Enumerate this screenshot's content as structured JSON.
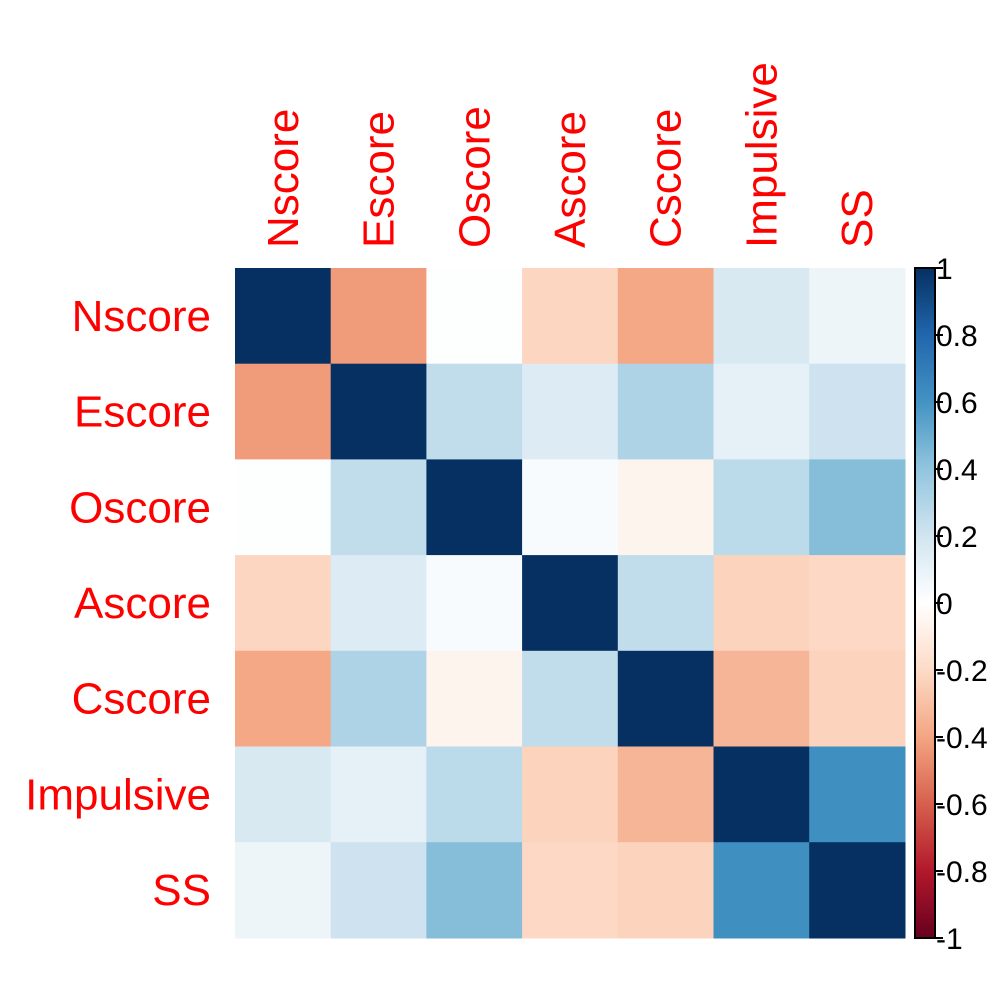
{
  "chart_data": {
    "type": "heatmap",
    "title": "",
    "variables": [
      "Nscore",
      "Escore",
      "Oscore",
      "Ascore",
      "Cscore",
      "Impulsive",
      "SS"
    ],
    "matrix": [
      [
        1.0,
        -0.43,
        0.01,
        -0.22,
        -0.39,
        0.17,
        0.08
      ],
      [
        -0.43,
        1.0,
        0.25,
        0.15,
        0.31,
        0.11,
        0.21
      ],
      [
        0.01,
        0.25,
        1.0,
        0.03,
        -0.06,
        0.27,
        0.43
      ],
      [
        -0.22,
        0.15,
        0.03,
        1.0,
        0.25,
        -0.23,
        -0.21
      ],
      [
        -0.39,
        0.31,
        -0.06,
        0.25,
        1.0,
        -0.34,
        -0.23
      ],
      [
        0.17,
        0.11,
        0.27,
        -0.23,
        -0.34,
        1.0,
        0.62
      ],
      [
        0.08,
        0.21,
        0.43,
        -0.21,
        -0.23,
        0.62,
        1.0
      ]
    ],
    "colorbar": {
      "range": [
        -1,
        1
      ],
      "ticks": [
        1,
        0.8,
        0.6,
        0.4,
        0.2,
        0,
        -0.2,
        -0.4,
        -0.6,
        -0.8,
        -1
      ],
      "tick_labels": [
        "1",
        "0.8",
        "0.6",
        "0.4",
        "0.2",
        "0",
        "-0.2",
        "-0.4",
        "-0.6",
        "-0.8",
        "-1"
      ],
      "colors": {
        "low": "#67001F",
        "mid": "#FFFFFF",
        "high": "#053061"
      }
    },
    "label_color": "#FF0000"
  }
}
